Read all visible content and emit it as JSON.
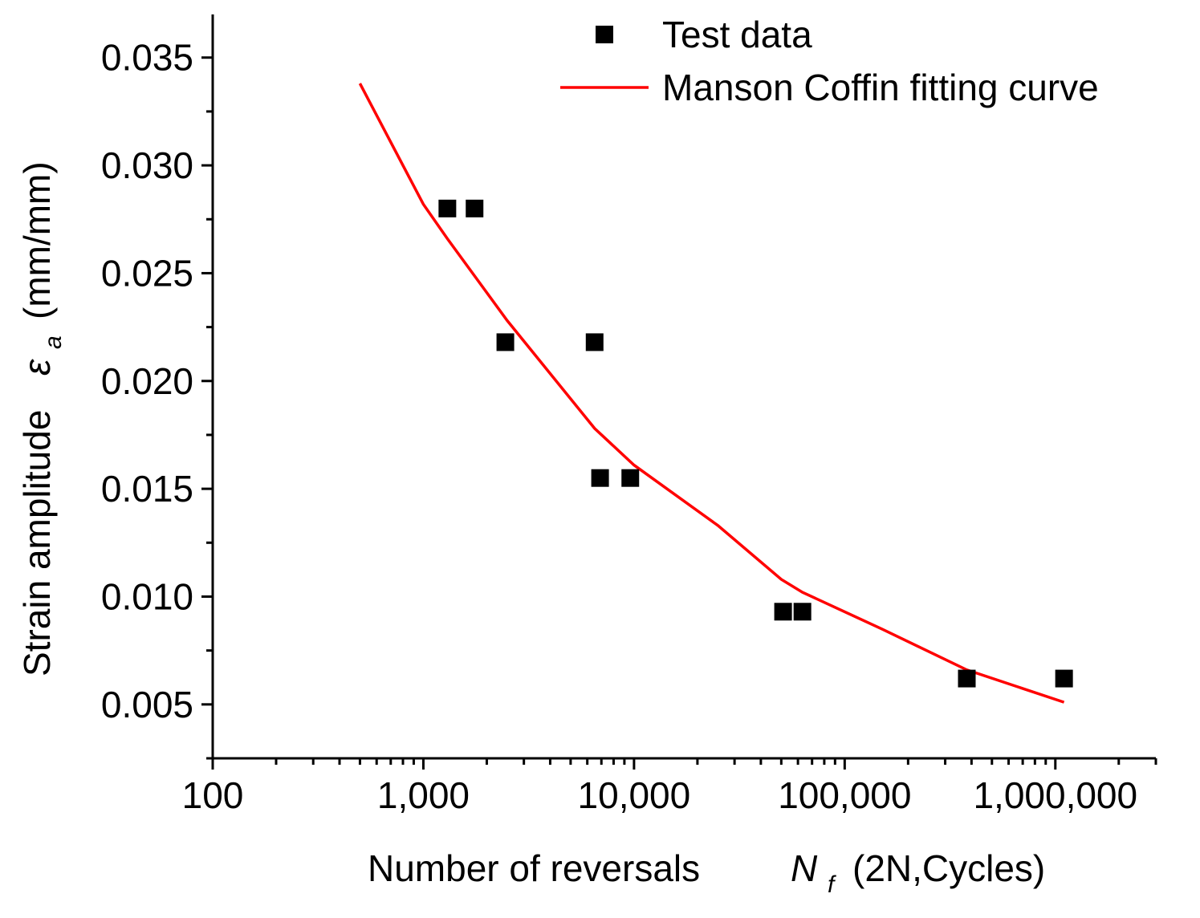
{
  "chart_data": {
    "type": "scatter",
    "x_scale": "log",
    "y_scale": "linear",
    "xlim": [
      100,
      3000000
    ],
    "ylim": [
      0.0025,
      0.037
    ],
    "x_ticks": [
      {
        "value": 100,
        "label": "100"
      },
      {
        "value": 1000,
        "label": "1,000"
      },
      {
        "value": 10000,
        "label": "10,000"
      },
      {
        "value": 100000,
        "label": "100,000"
      },
      {
        "value": 1000000,
        "label": "1,000,000"
      }
    ],
    "y_ticks": [
      {
        "value": 0.005,
        "label": "0.005"
      },
      {
        "value": 0.01,
        "label": "0.010"
      },
      {
        "value": 0.015,
        "label": "0.015"
      },
      {
        "value": 0.02,
        "label": "0.020"
      },
      {
        "value": 0.025,
        "label": "0.025"
      },
      {
        "value": 0.03,
        "label": "0.030"
      },
      {
        "value": 0.035,
        "label": "0.035"
      }
    ],
    "xlabel": {
      "main": "Number of reversals",
      "symbol": "N",
      "subscript": "f",
      "suffix": "(2N,Cycles)"
    },
    "ylabel": {
      "main": "Strain amplitude",
      "symbol": "ε",
      "subscript": "a",
      "suffix": "(mm/mm)"
    },
    "grid": false,
    "legend_position": "top-right",
    "series": [
      {
        "name": "Test data",
        "kind": "scatter",
        "color": "#000000",
        "marker": "square",
        "points": [
          {
            "x": 1300,
            "y": 0.028
          },
          {
            "x": 1750,
            "y": 0.028
          },
          {
            "x": 2450,
            "y": 0.0218
          },
          {
            "x": 6500,
            "y": 0.0218
          },
          {
            "x": 6900,
            "y": 0.0155
          },
          {
            "x": 9600,
            "y": 0.0155
          },
          {
            "x": 51000,
            "y": 0.0093
          },
          {
            "x": 63000,
            "y": 0.0093
          },
          {
            "x": 380000,
            "y": 0.0062
          },
          {
            "x": 1100000,
            "y": 0.0062
          }
        ]
      },
      {
        "name": "Manson Coffin fitting curve",
        "kind": "line",
        "color": "#ff0000",
        "points": [
          {
            "x": 500,
            "y": 0.0338
          },
          {
            "x": 1000,
            "y": 0.0282
          },
          {
            "x": 1300,
            "y": 0.0266
          },
          {
            "x": 2500,
            "y": 0.0228
          },
          {
            "x": 6500,
            "y": 0.0178
          },
          {
            "x": 10000,
            "y": 0.0161
          },
          {
            "x": 25000,
            "y": 0.0133
          },
          {
            "x": 50000,
            "y": 0.0108
          },
          {
            "x": 63000,
            "y": 0.0102
          },
          {
            "x": 150000,
            "y": 0.0085
          },
          {
            "x": 380000,
            "y": 0.0066
          },
          {
            "x": 1100000,
            "y": 0.0051
          }
        ]
      }
    ]
  }
}
